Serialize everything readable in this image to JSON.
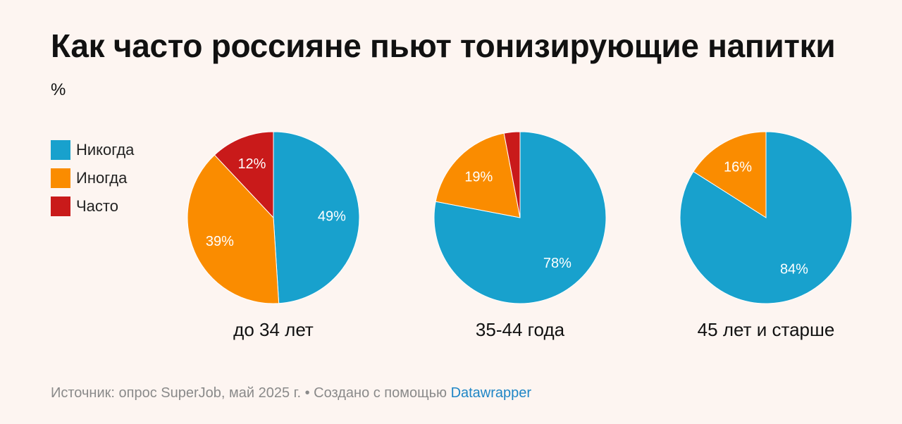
{
  "title": "Как часто россияне пьют тонизирующие напитки",
  "unit": "%",
  "legend": [
    {
      "label": "Никогда",
      "color": "#18a1cd"
    },
    {
      "label": "Иногда",
      "color": "#fa8c00"
    },
    {
      "label": "Часто",
      "color": "#c91a1a"
    }
  ],
  "chart_data": [
    {
      "type": "pie",
      "label": "до 34 лет",
      "slices": [
        {
          "name": "Никогда",
          "value": 49,
          "text": "49%"
        },
        {
          "name": "Иногда",
          "value": 39,
          "text": "39%"
        },
        {
          "name": "Часто",
          "value": 12,
          "text": "12%"
        }
      ]
    },
    {
      "type": "pie",
      "label": "35-44 года",
      "slices": [
        {
          "name": "Никогда",
          "value": 78,
          "text": "78%"
        },
        {
          "name": "Иногда",
          "value": 19,
          "text": "19%"
        },
        {
          "name": "Часто",
          "value": 3,
          "text": ""
        }
      ]
    },
    {
      "type": "pie",
      "label": "45 лет и старше",
      "slices": [
        {
          "name": "Никогда",
          "value": 84,
          "text": "84%"
        },
        {
          "name": "Иногда",
          "value": 16,
          "text": "16%"
        },
        {
          "name": "Часто",
          "value": 0,
          "text": ""
        }
      ]
    }
  ],
  "footer": {
    "source": "Источник: опрос SuperJob, май 2025 г. • Создано с помощью ",
    "link": "Datawrapper"
  }
}
